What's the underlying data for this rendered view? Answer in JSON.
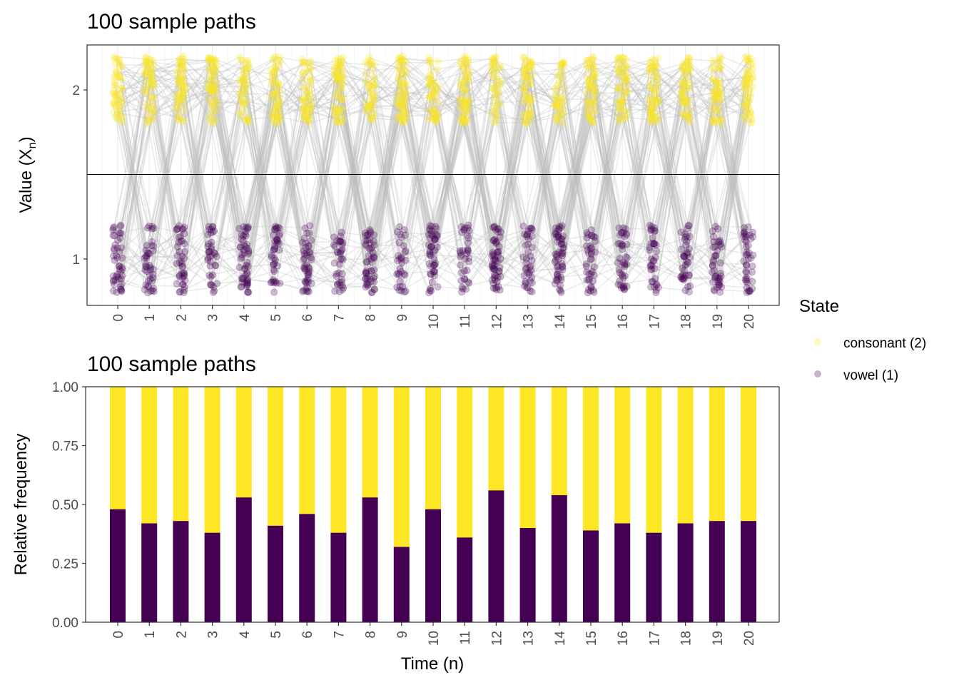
{
  "chart_data": [
    {
      "type": "scatter",
      "title": "100 sample paths",
      "xlabel": "",
      "ylabel": "Value (X",
      "ylabel_subscript": "n",
      "ylabel_close": ")",
      "x_ticks": [
        "0",
        "1",
        "2",
        "3",
        "4",
        "5",
        "6",
        "7",
        "8",
        "9",
        "10",
        "11",
        "12",
        "13",
        "14",
        "15",
        "16",
        "17",
        "18",
        "19",
        "20"
      ],
      "y_ticks": [
        {
          "value": 1,
          "label": "1"
        },
        {
          "value": 2,
          "label": "2"
        }
      ],
      "xlim": [
        -1,
        21
      ],
      "ylim": [
        0.75,
        2.25
      ],
      "grid": true,
      "reference_line_y": 1.5,
      "n_paths": 100,
      "jitter": {
        "x": 0.15,
        "y": 0.2
      },
      "states": [
        {
          "name": "consonant (2)",
          "value": 2,
          "color": "#FDE725"
        },
        {
          "name": "vowel (1)",
          "value": 1,
          "color": "#440154"
        }
      ],
      "line_color": "#BEBEBE",
      "vowel_proportion": [
        0.48,
        0.42,
        0.43,
        0.38,
        0.53,
        0.41,
        0.46,
        0.38,
        0.53,
        0.32,
        0.48,
        0.36,
        0.56,
        0.4,
        0.54,
        0.39,
        0.42,
        0.38,
        0.42,
        0.43,
        0.43
      ]
    },
    {
      "type": "bar",
      "stacked": true,
      "title": "100 sample paths",
      "xlabel": "Time (n)",
      "ylabel": "Relative frequency",
      "categories": [
        "0",
        "1",
        "2",
        "3",
        "4",
        "5",
        "6",
        "7",
        "8",
        "9",
        "10",
        "11",
        "12",
        "13",
        "14",
        "15",
        "16",
        "17",
        "18",
        "19",
        "20"
      ],
      "y_ticks": [
        "0.00",
        "0.25",
        "0.50",
        "0.75",
        "1.00"
      ],
      "ylim": [
        0,
        1
      ],
      "grid": false,
      "series": [
        {
          "name": "vowel (1)",
          "color": "#440154",
          "values": [
            0.48,
            0.42,
            0.43,
            0.38,
            0.53,
            0.41,
            0.46,
            0.38,
            0.53,
            0.32,
            0.48,
            0.36,
            0.56,
            0.4,
            0.54,
            0.39,
            0.42,
            0.38,
            0.42,
            0.43,
            0.43
          ]
        },
        {
          "name": "consonant (2)",
          "color": "#FDE725",
          "values": [
            0.52,
            0.58,
            0.57,
            0.62,
            0.47,
            0.59,
            0.54,
            0.62,
            0.47,
            0.68,
            0.52,
            0.64,
            0.44,
            0.6,
            0.46,
            0.61,
            0.58,
            0.62,
            0.58,
            0.57,
            0.57
          ]
        }
      ]
    }
  ],
  "legend": {
    "title": "State",
    "position": "right",
    "items": [
      {
        "label": "consonant (2)",
        "color": "#FDE725"
      },
      {
        "label": "vowel (1)",
        "color": "#440154"
      }
    ]
  }
}
